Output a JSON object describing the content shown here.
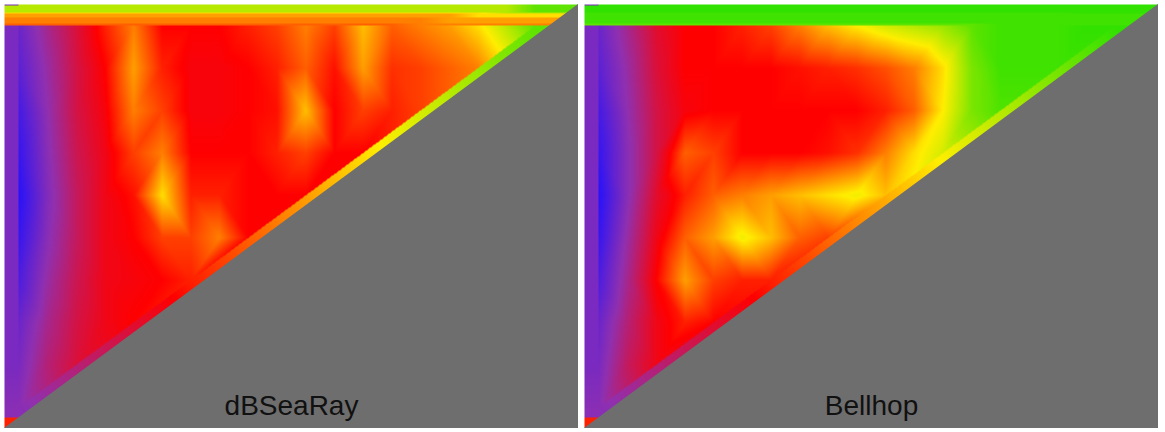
{
  "chart_data": [
    {
      "type": "heatmap",
      "title": "dBSeaRay",
      "x": [
        0.5,
        1.5,
        2.5,
        3.5,
        4.5,
        5.5,
        6.5,
        7.5,
        8.5,
        9.5,
        10.5,
        11.5,
        12.5,
        13.5,
        14.5,
        15.5,
        16.5,
        17.5,
        18.5,
        19.5
      ],
      "y": [
        0.5,
        1.5,
        2.5,
        3.5,
        4.5,
        5.5,
        6.5,
        7.5,
        8.5,
        9.5
      ],
      "cells": [
        [
          90,
          82,
          75,
          68,
          62,
          70,
          70,
          70,
          68,
          66,
          62,
          66,
          58,
          64,
          62,
          60,
          56,
          50,
          44,
          null
        ],
        [
          92,
          84,
          76,
          70,
          60,
          68,
          71,
          71,
          70,
          68,
          64,
          69,
          60,
          67,
          66,
          64,
          62,
          null,
          null,
          null
        ],
        [
          95,
          85,
          76,
          71,
          62,
          66,
          71,
          71,
          70,
          69,
          58,
          70,
          66,
          68,
          66,
          null,
          null,
          null,
          null,
          null
        ],
        [
          97,
          86,
          77,
          72,
          66,
          62,
          70,
          70,
          70,
          68,
          66,
          70,
          70,
          null,
          null,
          null,
          null,
          null,
          null,
          null
        ],
        [
          99,
          87,
          78,
          72,
          69,
          56,
          68,
          68,
          70,
          70,
          70,
          null,
          null,
          null,
          null,
          null,
          null,
          null,
          null,
          null
        ],
        [
          97,
          86,
          78,
          72,
          70,
          66,
          66,
          62,
          70,
          null,
          null,
          null,
          null,
          null,
          null,
          null,
          null,
          null,
          null,
          null
        ],
        [
          94,
          84,
          77,
          72,
          71,
          70,
          68,
          null,
          null,
          null,
          null,
          null,
          null,
          null,
          null,
          null,
          null,
          null,
          null,
          null
        ],
        [
          90,
          82,
          76,
          72,
          70,
          null,
          null,
          null,
          null,
          null,
          null,
          null,
          null,
          null,
          null,
          null,
          null,
          null,
          null,
          null
        ],
        [
          88,
          80,
          75,
          null,
          null,
          null,
          null,
          null,
          null,
          null,
          null,
          null,
          null,
          null,
          null,
          null,
          null,
          null,
          null,
          null
        ],
        [
          86,
          null,
          null,
          null,
          null,
          null,
          null,
          null,
          null,
          null,
          null,
          null,
          null,
          null,
          null,
          null,
          null,
          null,
          null,
          null
        ]
      ],
      "xlim": [
        0,
        20
      ],
      "ylim": [
        0,
        10
      ],
      "tick_labels": false,
      "color_scale": {
        "domain": [
          40,
          55,
          70,
          85,
          100
        ],
        "colors": [
          "#22e000",
          "#ffee00",
          "#ff0000",
          "#9030b0",
          "#2010ff"
        ]
      },
      "seabed": {
        "range": [
          0,
          20
        ],
        "depth": [
          10,
          0
        ],
        "color": "#6e6e6e"
      }
    },
    {
      "type": "heatmap",
      "title": "Bellhop",
      "x": [
        0.5,
        1.5,
        2.5,
        3.5,
        4.5,
        5.5,
        6.5,
        7.5,
        8.5,
        9.5,
        10.5,
        11.5,
        12.5,
        13.5,
        14.5,
        15.5,
        16.5,
        17.5,
        18.5,
        19.5
      ],
      "y": [
        0.5,
        1.5,
        2.5,
        3.5,
        4.5,
        5.5,
        6.5,
        7.5,
        8.5,
        9.5
      ],
      "cells": [
        [
          90,
          82,
          74,
          70,
          70,
          68,
          66,
          62,
          58,
          55,
          52,
          50,
          48,
          44,
          42,
          42,
          42,
          41,
          41,
          null
        ],
        [
          92,
          84,
          75,
          70,
          70,
          70,
          70,
          69,
          68,
          67,
          65,
          62,
          56,
          46,
          42,
          42,
          42,
          null,
          null,
          null
        ],
        [
          95,
          85,
          76,
          71,
          70,
          70,
          70,
          70,
          70,
          70,
          68,
          64,
          55,
          46,
          43,
          null,
          null,
          null,
          null,
          null
        ],
        [
          97,
          86,
          76,
          64,
          66,
          70,
          70,
          70,
          69,
          67,
          62,
          56,
          52,
          null,
          null,
          null,
          null,
          null,
          null,
          null
        ],
        [
          99,
          86,
          74,
          68,
          64,
          62,
          60,
          58,
          56,
          54,
          58,
          null,
          null,
          null,
          null,
          null,
          null,
          null,
          null,
          null
        ],
        [
          97,
          84,
          72,
          64,
          60,
          54,
          58,
          64,
          66,
          null,
          null,
          null,
          null,
          null,
          null,
          null,
          null,
          null,
          null,
          null
        ],
        [
          94,
          82,
          70,
          60,
          66,
          68,
          68,
          null,
          null,
          null,
          null,
          null,
          null,
          null,
          null,
          null,
          null,
          null,
          null,
          null
        ],
        [
          90,
          80,
          72,
          68,
          70,
          null,
          null,
          null,
          null,
          null,
          null,
          null,
          null,
          null,
          null,
          null,
          null,
          null,
          null,
          null
        ],
        [
          88,
          78,
          72,
          null,
          null,
          null,
          null,
          null,
          null,
          null,
          null,
          null,
          null,
          null,
          null,
          null,
          null,
          null,
          null,
          null
        ],
        [
          86,
          null,
          null,
          null,
          null,
          null,
          null,
          null,
          null,
          null,
          null,
          null,
          null,
          null,
          null,
          null,
          null,
          null,
          null,
          null
        ]
      ],
      "xlim": [
        0,
        20
      ],
      "ylim": [
        0,
        10
      ],
      "tick_labels": false,
      "color_scale": {
        "domain": [
          40,
          55,
          70,
          85,
          100
        ],
        "colors": [
          "#22e000",
          "#ffee00",
          "#ff0000",
          "#9030b0",
          "#2010ff"
        ]
      },
      "seabed": {
        "range": [
          0,
          20
        ],
        "depth": [
          10,
          0
        ],
        "color": "#6e6e6e"
      }
    }
  ]
}
